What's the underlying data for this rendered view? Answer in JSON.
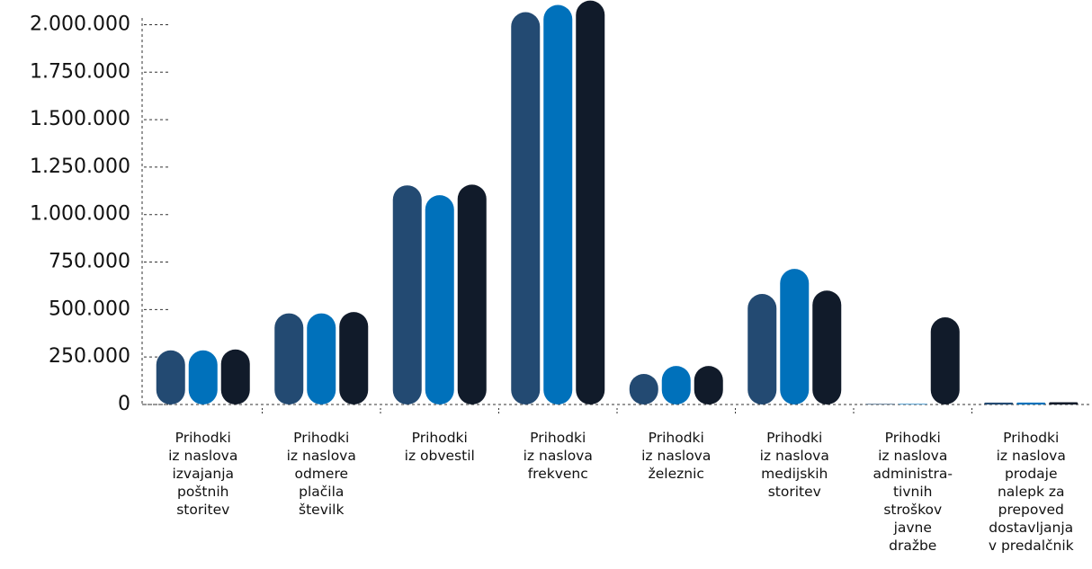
{
  "chart_data": {
    "type": "bar",
    "categories": [
      "Prihodki\niz naslova\nizvajanja\npoštnih\nstoritev",
      "Prihodki\niz naslova\nodmere\nplačila\nštevilk",
      "Prihodki\niz obvestil",
      "Prihodki\niz naslova\nfrekvenc",
      "Prihodki\niz naslova\nželeznic",
      "Prihodki\niz naslova\nmedijskih\nstoritev",
      "Prihodki\niz naslova\nadministra-\ntivnih\nstroškov\njavne\ndražbe",
      "Prihodki\niz naslova\nprodaje\nnalepk za\nprepoved\ndostavljanja\nv predalčnik"
    ],
    "series": [
      {
        "color": "#234a72",
        "values": [
          285000,
          480000,
          1154000,
          2066000,
          161000,
          582000,
          3000,
          10000
        ]
      },
      {
        "color": "#0071bb",
        "values": [
          285000,
          480000,
          1102000,
          2104000,
          203000,
          714000,
          3000,
          10000
        ]
      },
      {
        "color": "#111b2a",
        "values": [
          290000,
          487000,
          1158000,
          2127000,
          203000,
          600000,
          459000,
          12000
        ]
      }
    ],
    "ylim": [
      0,
      2130000
    ],
    "yticks": [
      0,
      {
        "value": 250000,
        "label": "250.000"
      },
      {
        "value": 500000,
        "label": "500.000"
      },
      {
        "value": 750000,
        "label": "750.000"
      },
      {
        "value": 1000000,
        "label": "1.000.000"
      },
      {
        "value": 1250000,
        "label": "1.250.000"
      },
      {
        "value": 1500000,
        "label": "1.500.000"
      },
      {
        "value": 1750000,
        "label": "1.750.000"
      },
      {
        "value": 2000000,
        "label": "2.000.000"
      }
    ]
  }
}
